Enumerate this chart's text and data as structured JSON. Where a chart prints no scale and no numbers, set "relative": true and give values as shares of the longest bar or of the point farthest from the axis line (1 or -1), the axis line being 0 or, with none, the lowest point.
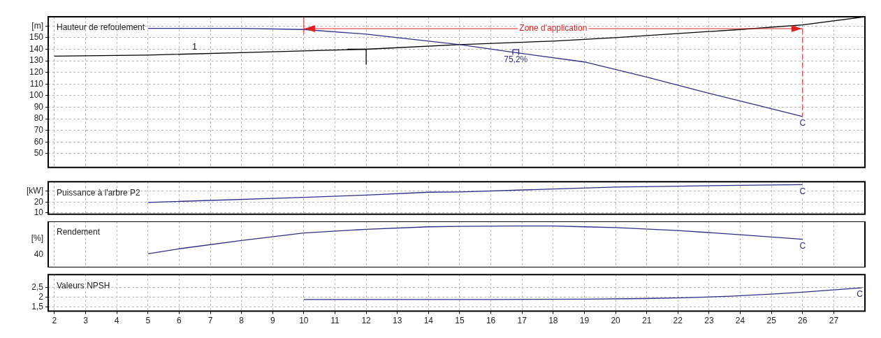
{
  "chart_data": [
    {
      "type": "line",
      "title": "Hauteur de refoulement",
      "xlim": [
        1.8,
        28
      ],
      "xticks": [
        2,
        3,
        4,
        5,
        6,
        7,
        8,
        9,
        10,
        11,
        12,
        13,
        14,
        15,
        16,
        17,
        18,
        19,
        20,
        21,
        22,
        23,
        24,
        25,
        26,
        27
      ],
      "ylim": [
        38,
        168
      ],
      "yticks": [
        50,
        60,
        70,
        80,
        90,
        100,
        110,
        120,
        130,
        140,
        150,
        {
          "value": 160,
          "label": "[m]"
        }
      ],
      "grid": true,
      "tick_labels": "y",
      "series": [
        {
          "color": "#2e2e8a",
          "x": [
            5,
            8,
            10,
            12,
            14,
            15,
            16.8,
            19,
            21,
            23,
            24.5,
            26
          ],
          "values": [
            158,
            158,
            157,
            153,
            147,
            144,
            137,
            129,
            116,
            102,
            92,
            82
          ]
        },
        {
          "name": "1",
          "color": "#000000",
          "x": [
            2,
            5,
            8,
            10,
            12,
            15,
            18,
            20,
            24,
            26,
            28
          ],
          "values": [
            134,
            135,
            137,
            138.5,
            140,
            144,
            147,
            150,
            157,
            161,
            168
          ]
        },
        {
          "color": "#000000",
          "x": [
            11.4,
            12,
            12
          ],
          "values": [
            140,
            140,
            127
          ]
        },
        {
          "type": "scatter",
          "marker": "square",
          "color": "#2e2e8a",
          "x": [
            16.8
          ],
          "values": [
            137
          ]
        }
      ],
      "ref_lines": [
        {
          "axis": "x",
          "value": 10,
          "label": "Zone d'application",
          "color": "#e02020"
        },
        {
          "axis": "x",
          "value": 26,
          "color": "#e02020",
          "line_style": "dashed"
        }
      ],
      "annotations": [
        {
          "text": "75,2%",
          "x": 16.8,
          "y": 137
        },
        {
          "text": "C",
          "x": 26,
          "y": 82
        }
      ]
    },
    {
      "type": "line",
      "title": "Puissance à l'arbre P2",
      "xlim": [
        1.8,
        28
      ],
      "xticks": [
        2,
        3,
        4,
        5,
        6,
        7,
        8,
        9,
        10,
        11,
        12,
        13,
        14,
        15,
        16,
        17,
        18,
        19,
        20,
        21,
        22,
        23,
        24,
        25,
        26,
        27
      ],
      "ylim": [
        8.7,
        38.7
      ],
      "yticks": [
        10,
        20,
        {
          "value": 30,
          "label": "[kW]"
        }
      ],
      "grid": true,
      "tick_labels": "y",
      "series": [
        {
          "color": "#2e2e8a",
          "x": [
            5,
            10,
            12,
            14,
            15,
            18,
            20,
            22,
            24,
            26
          ],
          "values": [
            19.6,
            24.2,
            26.4,
            29,
            29.3,
            32,
            33.8,
            34.6,
            35.4,
            36
          ]
        }
      ],
      "annotations": [
        {
          "text": "C",
          "x": 26,
          "y": 36
        }
      ]
    },
    {
      "type": "line",
      "title": "Rendement",
      "ylabel": "[%]",
      "relative": true,
      "xlim": [
        1.8,
        28
      ],
      "xticks": [
        2,
        3,
        4,
        5,
        6,
        7,
        8,
        9,
        10,
        11,
        12,
        13,
        14,
        15,
        16,
        17,
        18,
        19,
        20,
        21,
        22,
        23,
        24,
        25,
        26,
        27
      ],
      "grid": true,
      "tick_labels": "y",
      "series": [
        {
          "color": "#2e2e8a",
          "x": [
            5,
            6,
            8,
            10,
            12,
            14,
            15,
            16.8,
            18,
            19,
            20,
            22,
            24,
            26
          ],
          "values": [
            0.33,
            0.45,
            0.65,
            0.83,
            0.92,
            0.98,
            0.99,
            1,
            1,
            0.98,
            0.96,
            0.89,
            0.79,
            0.68
          ]
        }
      ],
      "annotations": [
        "40",
        {
          "text": "C",
          "x": 26,
          "y": 0.68
        }
      ]
    },
    {
      "type": "line",
      "title": "Valeurs NPSH",
      "xlim": [
        1.8,
        28
      ],
      "xticks": [
        2,
        3,
        4,
        5,
        6,
        7,
        8,
        9,
        10,
        11,
        12,
        13,
        14,
        15,
        16,
        17,
        18,
        19,
        20,
        21,
        22,
        23,
        24,
        25,
        26,
        27
      ],
      "ylim": [
        1.28,
        3.16
      ],
      "yticks": [
        {
          "value": 1.5,
          "label": "1,5"
        },
        2,
        {
          "value": 2.5,
          "label": "2,5"
        }
      ],
      "grid": true,
      "series": [
        {
          "color": "#2e2e8a",
          "x": [
            10,
            16,
            19,
            20.9,
            22.2,
            23.7,
            25.1,
            26,
            27.9
          ],
          "values": [
            1.88,
            1.88,
            1.9,
            1.93,
            1.97,
            2.05,
            2.17,
            2.26,
            2.48
          ]
        }
      ],
      "annotations": [
        {
          "text": "C",
          "x": 27.9,
          "y": 2.48
        }
      ]
    }
  ]
}
